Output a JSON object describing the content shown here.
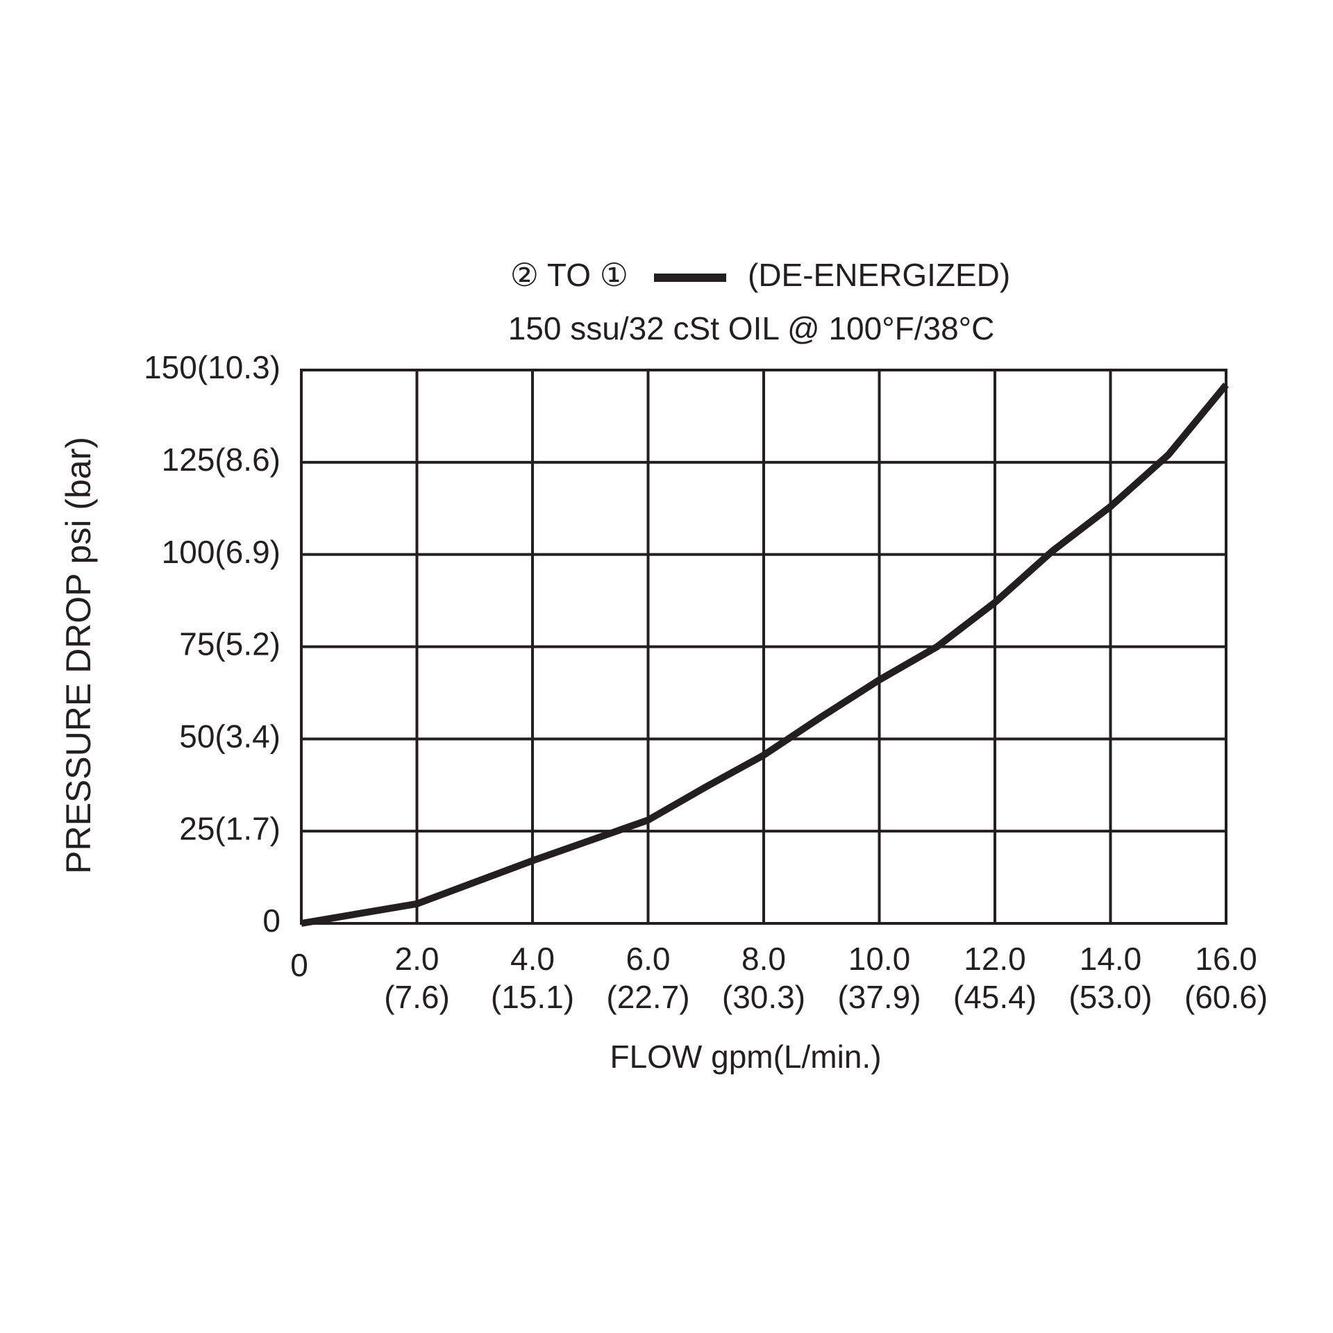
{
  "chart_data": {
    "type": "line",
    "title": "150 ssu/32 cSt OIL @ 100°F/38°C",
    "legend_note": "(DE-ENERGIZED)",
    "x_label": "FLOW gpm(L/min.)",
    "y_label": "PRESSURE DROP psi (bar)",
    "x": [
      0,
      2,
      4,
      6,
      7,
      8,
      9,
      10,
      11,
      12,
      13,
      14,
      15,
      16
    ],
    "series": [
      {
        "name": "② TO ①",
        "color": "#231f20",
        "values": [
          0,
          5.3,
          17,
          28,
          37,
          45.6,
          56,
          66,
          75,
          87,
          101,
          113,
          127,
          146
        ]
      }
    ],
    "xlim": [
      0,
      16
    ],
    "ylim": [
      0,
      150
    ],
    "xticks": [
      0,
      {
        "value": 2,
        "label": "2.0",
        "sublabel": "(7.6)"
      },
      {
        "value": 4,
        "label": "4.0",
        "sublabel": "(15.1)"
      },
      {
        "value": 6,
        "label": "6.0",
        "sublabel": "(22.7)"
      },
      {
        "value": 8,
        "label": "8.0",
        "sublabel": "(30.3)"
      },
      {
        "value": 10,
        "label": "10.0",
        "sublabel": "(37.9)"
      },
      {
        "value": 12,
        "label": "12.0",
        "sublabel": "(45.4)"
      },
      {
        "value": 14,
        "label": "14.0",
        "sublabel": "(53.0)"
      },
      {
        "value": 16,
        "label": "16.0",
        "sublabel": "(60.6)"
      }
    ],
    "yticks": [
      0,
      {
        "value": 25,
        "label": "25(1.7)"
      },
      {
        "value": 50,
        "label": "50(3.4)"
      },
      {
        "value": 75,
        "label": "75(5.2)"
      },
      {
        "value": 100,
        "label": "100(6.9)"
      },
      {
        "value": 125,
        "label": "125(8.6)"
      },
      {
        "value": 150,
        "label": "150(10.3)"
      }
    ],
    "grid": true
  }
}
